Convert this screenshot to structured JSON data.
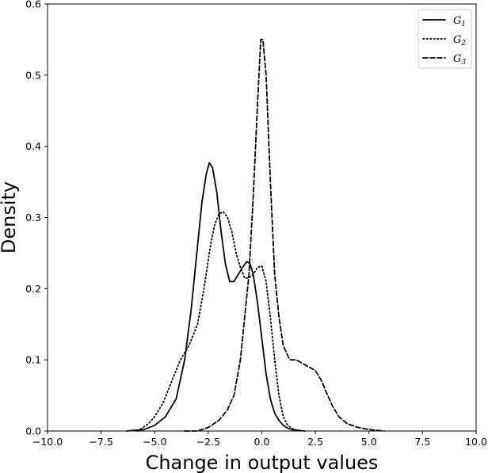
{
  "chart_data": {
    "type": "line",
    "xlabel": "Change in output values",
    "ylabel": "Density",
    "xlim": [
      -10.0,
      10.0
    ],
    "ylim": [
      0.0,
      0.6
    ],
    "xticks": [
      "−10.0",
      "−7.5",
      "−5.0",
      "−2.5",
      "0.0",
      "2.5",
      "5.0",
      "7.5",
      "10.0"
    ],
    "yticks": [
      "0.0",
      "0.1",
      "0.2",
      "0.3",
      "0.4",
      "0.5",
      "0.6"
    ],
    "legend_position": "top-right",
    "grid": false,
    "series": [
      {
        "name": "G1",
        "legend_main": "G",
        "legend_sub": "1",
        "style": "solid",
        "x": [
          -6.3,
          -5.5,
          -5.0,
          -4.5,
          -4.0,
          -3.6,
          -3.3,
          -3.0,
          -2.8,
          -2.6,
          -2.45,
          -2.3,
          -2.1,
          -1.9,
          -1.7,
          -1.5,
          -1.3,
          -1.1,
          -0.9,
          -0.7,
          -0.55,
          -0.4,
          -0.2,
          0.0,
          0.2,
          0.4,
          0.6,
          0.8,
          1.0,
          1.2,
          1.4,
          1.7,
          2.0
        ],
        "y": [
          0.0,
          0.002,
          0.008,
          0.02,
          0.045,
          0.1,
          0.17,
          0.26,
          0.32,
          0.36,
          0.377,
          0.37,
          0.335,
          0.28,
          0.235,
          0.21,
          0.21,
          0.22,
          0.23,
          0.238,
          0.235,
          0.22,
          0.18,
          0.13,
          0.08,
          0.045,
          0.025,
          0.015,
          0.008,
          0.004,
          0.002,
          0.001,
          0.0
        ]
      },
      {
        "name": "G2",
        "legend_main": "G",
        "legend_sub": "2",
        "style": "dotted",
        "x": [
          -5.8,
          -5.3,
          -5.0,
          -4.6,
          -4.2,
          -3.8,
          -3.4,
          -3.0,
          -2.7,
          -2.4,
          -2.2,
          -2.0,
          -1.8,
          -1.6,
          -1.4,
          -1.2,
          -1.0,
          -0.8,
          -0.6,
          -0.4,
          -0.2,
          0.0,
          0.2,
          0.4,
          0.6,
          0.8,
          1.0,
          1.2,
          1.5,
          1.8
        ],
        "y": [
          0.0,
          0.01,
          0.02,
          0.04,
          0.07,
          0.1,
          0.12,
          0.15,
          0.2,
          0.26,
          0.29,
          0.305,
          0.308,
          0.3,
          0.28,
          0.25,
          0.23,
          0.215,
          0.215,
          0.22,
          0.23,
          0.232,
          0.21,
          0.16,
          0.1,
          0.05,
          0.02,
          0.008,
          0.002,
          0.0
        ]
      },
      {
        "name": "G3",
        "legend_main": "G",
        "legend_sub": "3",
        "style": "dashed",
        "x": [
          -3.6,
          -3.0,
          -2.5,
          -2.0,
          -1.6,
          -1.3,
          -1.0,
          -0.8,
          -0.6,
          -0.4,
          -0.2,
          -0.05,
          0.05,
          0.2,
          0.4,
          0.6,
          0.8,
          1.0,
          1.3,
          1.6,
          1.9,
          2.2,
          2.5,
          2.8,
          3.0,
          3.3,
          3.6,
          4.0,
          4.5,
          5.0,
          5.7
        ],
        "y": [
          0.0,
          0.0,
          0.005,
          0.015,
          0.03,
          0.05,
          0.1,
          0.16,
          0.22,
          0.33,
          0.46,
          0.55,
          0.55,
          0.5,
          0.35,
          0.22,
          0.16,
          0.12,
          0.1,
          0.1,
          0.095,
          0.09,
          0.085,
          0.07,
          0.055,
          0.035,
          0.02,
          0.01,
          0.005,
          0.002,
          0.0
        ]
      }
    ]
  }
}
